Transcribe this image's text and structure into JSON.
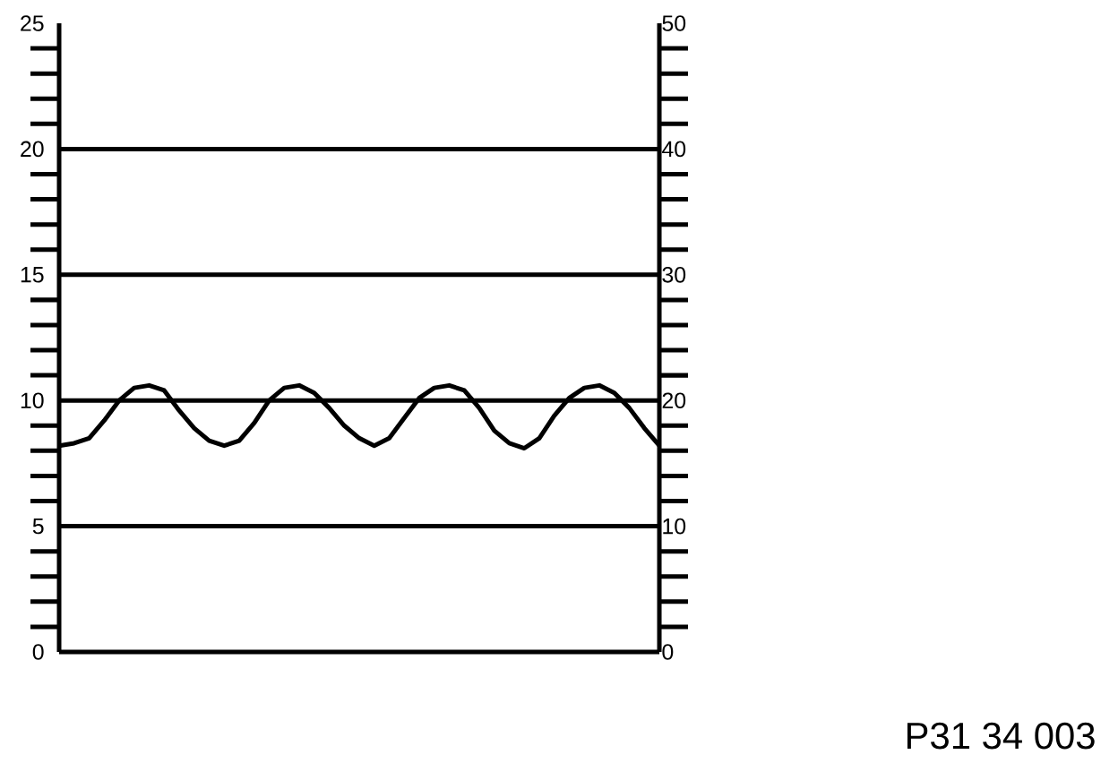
{
  "chart_data": {
    "type": "line",
    "categories": [
      null,
      null,
      null,
      null,
      null,
      null,
      null,
      null,
      null,
      null,
      null,
      null,
      null,
      null,
      null,
      null,
      null,
      null,
      null,
      null,
      null,
      null,
      null,
      null,
      null,
      null,
      null,
      null,
      null,
      null,
      null,
      null,
      null,
      null,
      null,
      null,
      null,
      null,
      null,
      null,
      null
    ],
    "series": [
      {
        "color": "#000000",
        "values": [
          8.2,
          8.3,
          8.5,
          9.2,
          10.0,
          10.5,
          10.6,
          10.4,
          9.6,
          8.9,
          8.4,
          8.2,
          8.4,
          9.1,
          10.0,
          10.5,
          10.6,
          10.3,
          9.7,
          9.0,
          8.5,
          8.2,
          8.5,
          9.3,
          10.1,
          10.5,
          10.6,
          10.4,
          9.7,
          8.8,
          8.3,
          8.1,
          8.5,
          9.4,
          10.1,
          10.5,
          10.6,
          10.3,
          9.7,
          8.9,
          8.2
        ]
      }
    ],
    "ylim": [
      0,
      25
    ],
    "yticks": [
      0,
      {
        "value": 1,
        "label": null
      },
      {
        "value": 2,
        "label": null
      },
      {
        "value": 3,
        "label": null
      },
      {
        "value": 4,
        "label": null
      },
      5,
      {
        "value": 6,
        "label": null
      },
      {
        "value": 7,
        "label": null
      },
      {
        "value": 8,
        "label": null
      },
      {
        "value": 9,
        "label": null
      },
      10,
      {
        "value": 11,
        "label": null
      },
      {
        "value": 12,
        "label": null
      },
      {
        "value": 13,
        "label": null
      },
      {
        "value": 14,
        "label": null
      },
      15,
      {
        "value": 16,
        "label": null
      },
      {
        "value": 17,
        "label": null
      },
      {
        "value": 18,
        "label": null
      },
      {
        "value": 19,
        "label": null
      },
      20,
      {
        "value": 21,
        "label": null
      },
      {
        "value": 22,
        "label": null
      },
      {
        "value": 23,
        "label": null
      },
      {
        "value": 24,
        "label": null
      },
      25
    ],
    "y2lim": [
      0,
      50
    ],
    "y2ticks": [
      0,
      {
        "value": 2,
        "label": null
      },
      {
        "value": 4,
        "label": null
      },
      {
        "value": 6,
        "label": null
      },
      {
        "value": 8,
        "label": null
      },
      10,
      {
        "value": 12,
        "label": null
      },
      {
        "value": 14,
        "label": null
      },
      {
        "value": 16,
        "label": null
      },
      {
        "value": 18,
        "label": null
      },
      20,
      {
        "value": 22,
        "label": null
      },
      {
        "value": 24,
        "label": null
      },
      {
        "value": 26,
        "label": null
      },
      {
        "value": 28,
        "label": null
      },
      30,
      {
        "value": 32,
        "label": null
      },
      {
        "value": 34,
        "label": null
      },
      {
        "value": 36,
        "label": null
      },
      {
        "value": 38,
        "label": null
      },
      40,
      {
        "value": 42,
        "label": null
      },
      {
        "value": 44,
        "label": null
      },
      {
        "value": 46,
        "label": null
      },
      {
        "value": 48,
        "label": null
      },
      50
    ],
    "grid": "y",
    "marker": "none",
    "line_style": "solid",
    "annotations": [
      "P31 34 003"
    ]
  }
}
